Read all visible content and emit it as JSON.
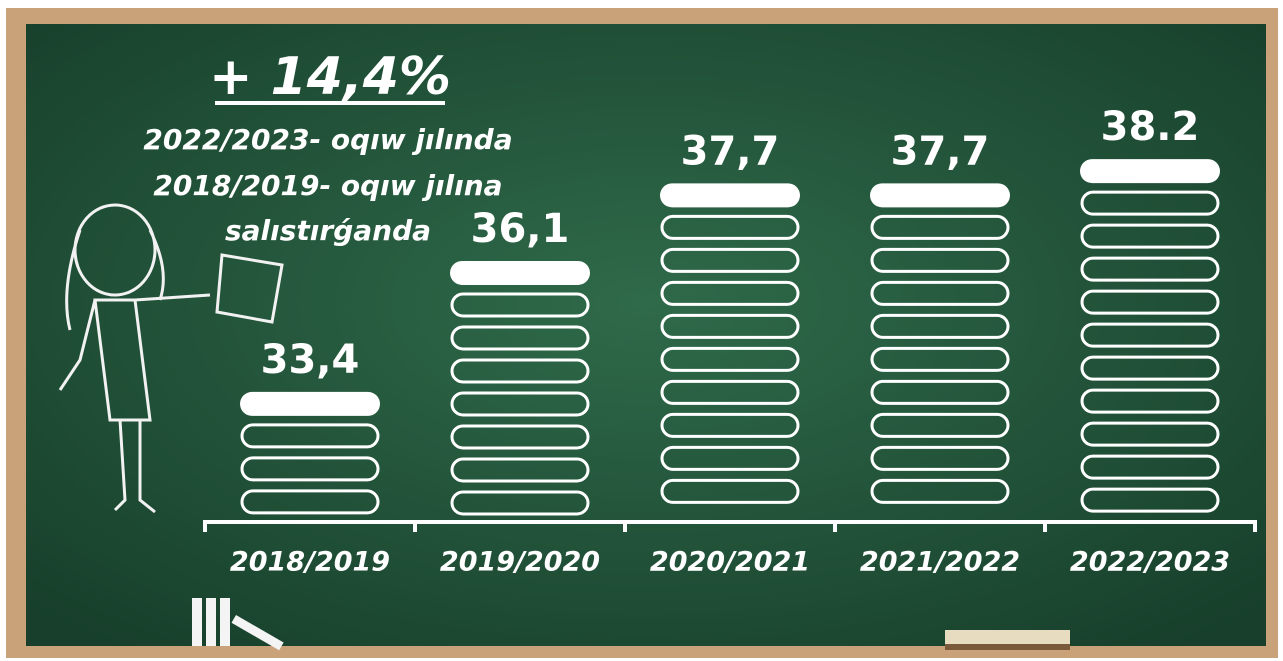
{
  "chart_data": {
    "type": "bar",
    "annotations": [
      "+ 14,4%",
      "2022/2023- oqıw jılında",
      "2018/2019- oqıw jılına",
      "salıstırǵanda"
    ],
    "categories": [
      "2018/2019",
      "2019/2020",
      "2020/2021",
      "2021/2022",
      "2022/2023"
    ],
    "values": [
      33.4,
      36.1,
      37.7,
      37.7,
      38.2
    ],
    "value_labels": [
      "33,4",
      "36,1",
      "37,7",
      "37,7",
      "38.2"
    ],
    "color": "#ffffff",
    "ylim": [
      30.8,
      38.8
    ]
  }
}
